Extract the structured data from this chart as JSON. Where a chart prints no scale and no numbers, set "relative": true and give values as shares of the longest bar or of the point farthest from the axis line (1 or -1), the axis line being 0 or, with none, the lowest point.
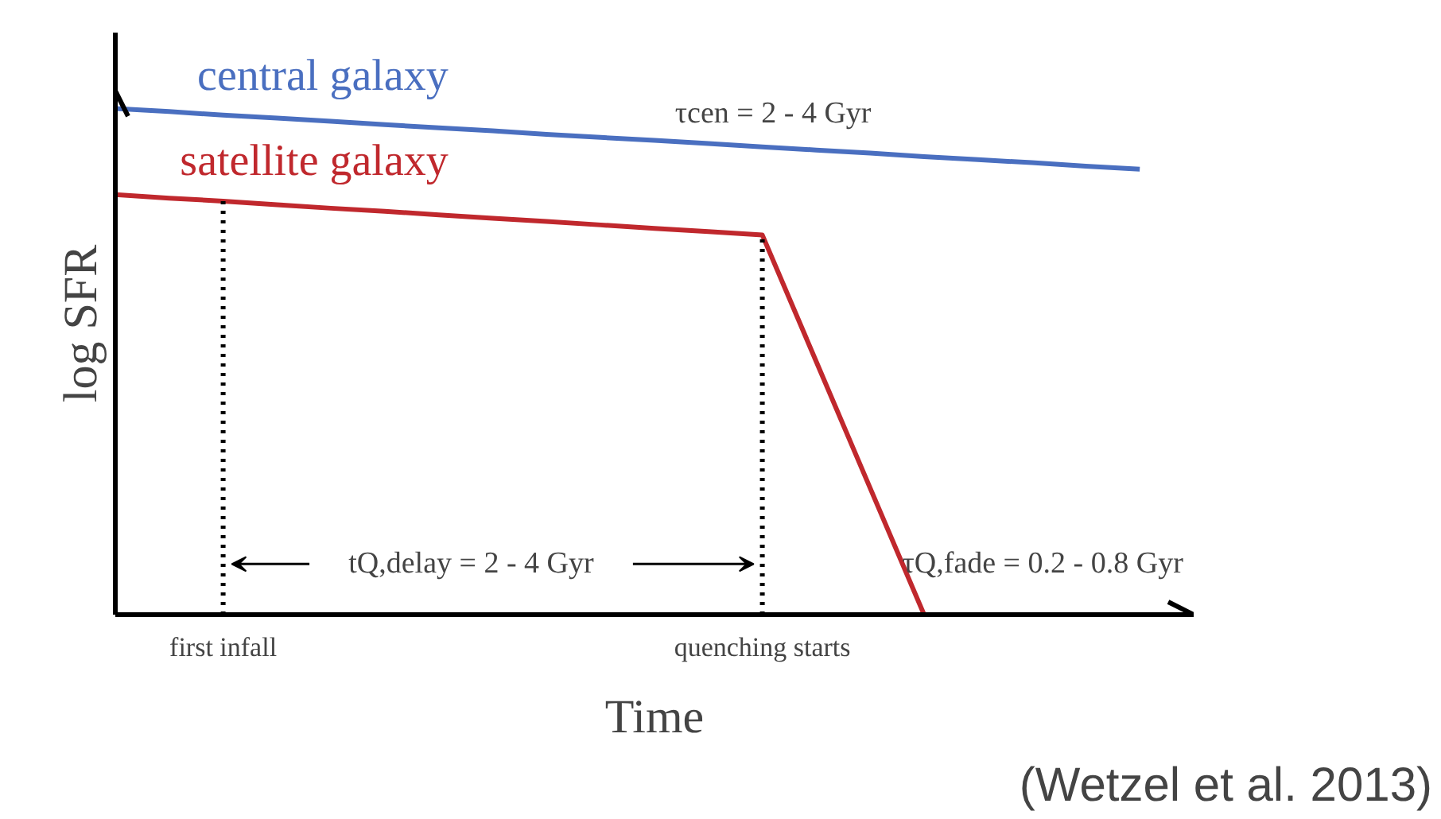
{
  "chart_data": {
    "type": "line",
    "relative": true,
    "xlabel": "Time",
    "ylabel": "log SFR",
    "categories": [
      null,
      null,
      "first infall",
      null,
      null,
      null,
      null,
      null,
      null,
      null,
      null,
      null,
      "quenching starts",
      null,
      null,
      null,
      null,
      null,
      null,
      null,
      null
    ],
    "tick_labels": "x",
    "grid": false,
    "marker": "none",
    "line_style": "solid",
    "series": [
      {
        "name": "central galaxy",
        "color": "#4a6fc0",
        "values": [
          1,
          0.994,
          0.987,
          0.981,
          0.975,
          0.968,
          0.962,
          0.956,
          0.949,
          0.943,
          0.937,
          0.931,
          0.924,
          0.918,
          0.912,
          0.905,
          0.899,
          0.893,
          0.886,
          0.88,
          null
        ]
      },
      {
        "name": "satellite galaxy",
        "color": "#c0282d",
        "values": [
          0.83,
          0.823,
          0.817,
          0.81,
          0.803,
          0.797,
          0.79,
          0.783,
          0.777,
          0.77,
          0.763,
          0.757,
          0.75,
          0.5,
          0.25,
          0,
          null,
          null,
          null,
          null,
          null
        ]
      }
    ],
    "ref_lines": [
      {
        "axis": "x",
        "value": "first infall",
        "line_style": "dotted",
        "color": "#000000"
      },
      {
        "axis": "x",
        "value": "quenching starts",
        "line_style": "dotted",
        "color": "#000000"
      }
    ],
    "annotations": [
      "τcen = 2 - 4 Gyr",
      "tQ,delay = 2 - 4 Gyr",
      "τQ,fade = 0.2 - 0.8 Gyr",
      "(Wetzel et al. 2013)"
    ]
  }
}
